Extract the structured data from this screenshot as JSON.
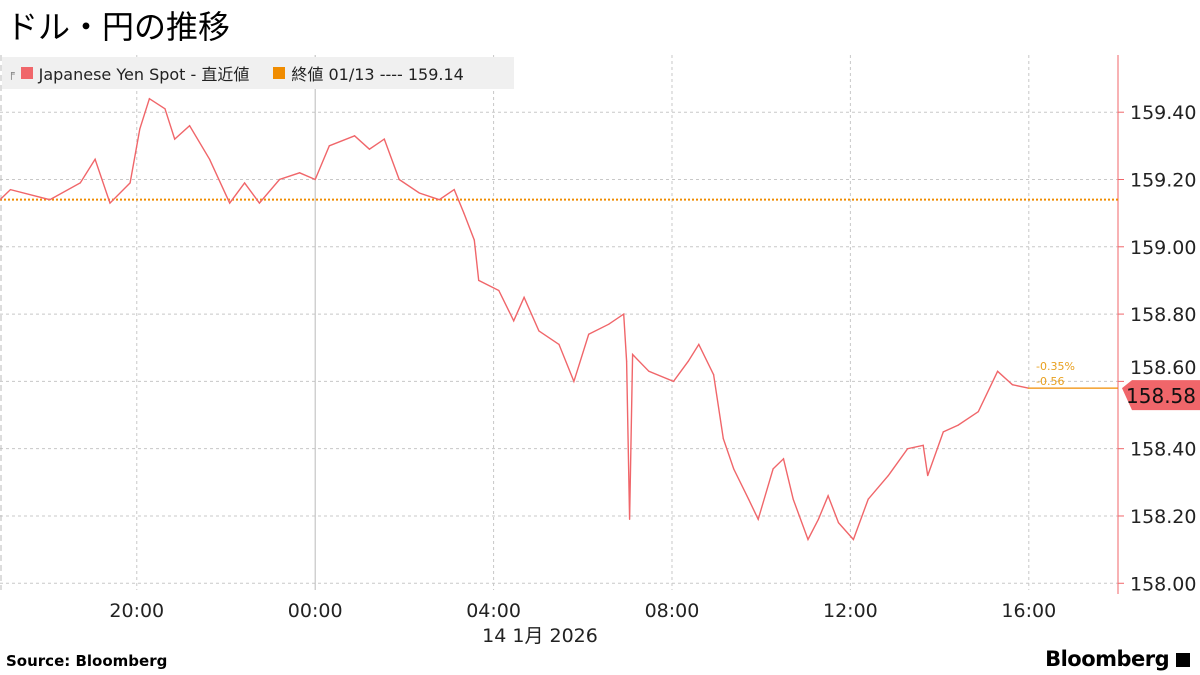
{
  "title": "ドル・円の推移",
  "legend": [
    {
      "label": "Japanese Yen Spot - 直近値",
      "color": "#f0666a",
      "icon": "chart-marker-icon"
    },
    {
      "label": "終値 01/13 ---- 159.14",
      "color": "#f08c00"
    }
  ],
  "footer": {
    "source": "Source:  Bloomberg",
    "logo": "Bloomberg"
  },
  "chart_data": {
    "type": "line",
    "title": "ドル・円の推移",
    "x_date_label": "14 1月 2026",
    "xlim": [
      "2026-01-13T16:56",
      "2026-01-14T18:00"
    ],
    "ylim": [
      157.98,
      159.57
    ],
    "x_ticks": [
      {
        "t": "2026-01-13T20:00",
        "label": "20:00"
      },
      {
        "t": "2026-01-14T00:00",
        "label": "00:00"
      },
      {
        "t": "2026-01-14T04:00",
        "label": "04:00"
      },
      {
        "t": "2026-01-14T08:00",
        "label": "08:00"
      },
      {
        "t": "2026-01-14T12:00",
        "label": "12:00"
      },
      {
        "t": "2026-01-14T16:00",
        "label": "16:00"
      }
    ],
    "y_ticks": [
      "158.00",
      "158.20",
      "158.40",
      "158.60",
      "158.80",
      "159.00",
      "159.20",
      "159.40"
    ],
    "y_axis_side": "right",
    "grid": true,
    "legend_placement": "top-left",
    "reference_line": {
      "value": 159.14,
      "color": "#f08c00"
    },
    "last_value": {
      "label": "158.58",
      "change": "-0.56",
      "change_pct": "-0.35%"
    },
    "series": [
      {
        "name": "Japanese Yen Spot - 直近値",
        "color": "#f0666a",
        "points": [
          [
            "2026-01-13T16:56",
            159.14
          ],
          [
            "2026-01-13T17:10",
            159.17
          ],
          [
            "2026-01-13T18:03",
            159.14
          ],
          [
            "2026-01-13T18:44",
            159.19
          ],
          [
            "2026-01-13T19:04",
            159.26
          ],
          [
            "2026-01-13T19:24",
            159.13
          ],
          [
            "2026-01-13T19:51",
            159.19
          ],
          [
            "2026-01-13T20:04",
            159.35
          ],
          [
            "2026-01-13T20:17",
            159.44
          ],
          [
            "2026-01-13T20:38",
            159.41
          ],
          [
            "2026-01-13T20:51",
            159.32
          ],
          [
            "2026-01-13T21:11",
            159.36
          ],
          [
            "2026-01-13T21:38",
            159.26
          ],
          [
            "2026-01-13T22:05",
            159.13
          ],
          [
            "2026-01-13T22:25",
            159.19
          ],
          [
            "2026-01-13T22:45",
            159.13
          ],
          [
            "2026-01-13T23:12",
            159.2
          ],
          [
            "2026-01-13T23:39",
            159.22
          ],
          [
            "2026-01-14T00:00",
            159.2
          ],
          [
            "2026-01-14T00:19",
            159.3
          ],
          [
            "2026-01-14T00:53",
            159.33
          ],
          [
            "2026-01-14T01:13",
            159.29
          ],
          [
            "2026-01-14T01:33",
            159.32
          ],
          [
            "2026-01-14T01:53",
            159.2
          ],
          [
            "2026-01-14T02:20",
            159.16
          ],
          [
            "2026-01-14T02:47",
            159.14
          ],
          [
            "2026-01-14T03:07",
            159.17
          ],
          [
            "2026-01-14T03:20",
            159.1
          ],
          [
            "2026-01-14T03:34",
            159.02
          ],
          [
            "2026-01-14T03:40",
            158.9
          ],
          [
            "2026-01-14T04:07",
            158.87
          ],
          [
            "2026-01-14T04:27",
            158.78
          ],
          [
            "2026-01-14T04:41",
            158.85
          ],
          [
            "2026-01-14T05:01",
            158.75
          ],
          [
            "2026-01-14T05:28",
            158.71
          ],
          [
            "2026-01-14T05:48",
            158.6
          ],
          [
            "2026-01-14T06:08",
            158.74
          ],
          [
            "2026-01-14T06:35",
            158.77
          ],
          [
            "2026-01-14T06:55",
            158.8
          ],
          [
            "2026-01-14T06:59",
            158.66
          ],
          [
            "2026-01-14T07:03",
            158.19
          ],
          [
            "2026-01-14T07:07",
            158.68
          ],
          [
            "2026-01-14T07:29",
            158.63
          ],
          [
            "2026-01-14T08:02",
            158.6
          ],
          [
            "2026-01-14T08:22",
            158.66
          ],
          [
            "2026-01-14T08:36",
            158.71
          ],
          [
            "2026-01-14T08:56",
            158.62
          ],
          [
            "2026-01-14T09:09",
            158.43
          ],
          [
            "2026-01-14T09:23",
            158.34
          ],
          [
            "2026-01-14T09:43",
            158.25
          ],
          [
            "2026-01-14T09:56",
            158.19
          ],
          [
            "2026-01-14T10:16",
            158.34
          ],
          [
            "2026-01-14T10:30",
            158.37
          ],
          [
            "2026-01-14T10:43",
            158.25
          ],
          [
            "2026-01-14T11:03",
            158.13
          ],
          [
            "2026-01-14T11:17",
            158.19
          ],
          [
            "2026-01-14T11:30",
            158.26
          ],
          [
            "2026-01-14T11:44",
            158.18
          ],
          [
            "2026-01-14T12:04",
            158.13
          ],
          [
            "2026-01-14T12:24",
            158.25
          ],
          [
            "2026-01-14T12:51",
            158.32
          ],
          [
            "2026-01-14T13:17",
            158.4
          ],
          [
            "2026-01-14T13:38",
            158.41
          ],
          [
            "2026-01-14T13:44",
            158.32
          ],
          [
            "2026-01-14T14:05",
            158.45
          ],
          [
            "2026-01-14T14:25",
            158.47
          ],
          [
            "2026-01-14T14:52",
            158.51
          ],
          [
            "2026-01-14T15:18",
            158.63
          ],
          [
            "2026-01-14T15:38",
            158.59
          ],
          [
            "2026-01-14T15:59",
            158.58
          ]
        ]
      }
    ]
  }
}
